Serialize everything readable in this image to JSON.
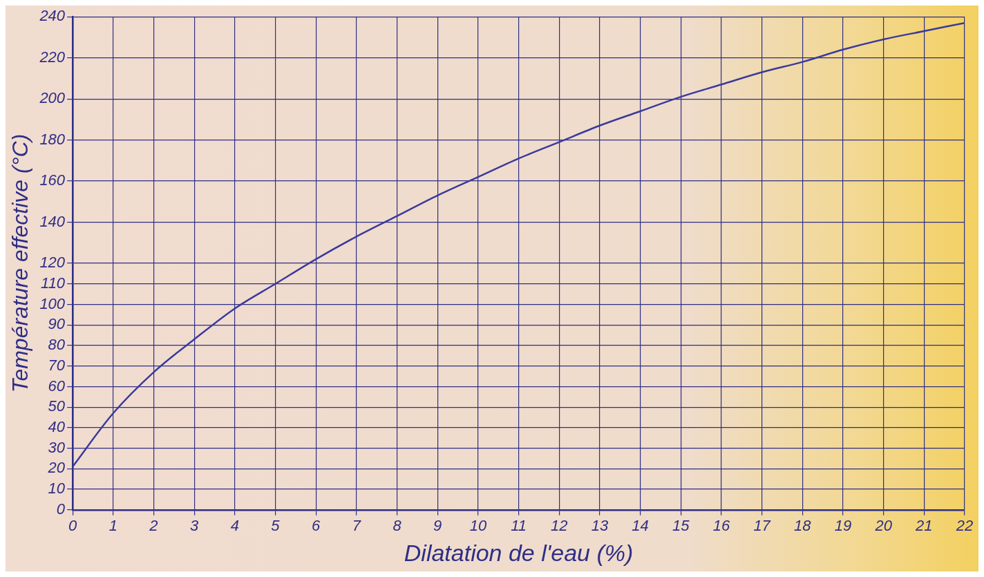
{
  "chart_data": {
    "type": "line",
    "xlabel": "Dilatation de l'eau (%)",
    "ylabel": "Température effective (°C)",
    "x": [
      0,
      1,
      2,
      3,
      4,
      5,
      6,
      7,
      8,
      9,
      10,
      11,
      12,
      13,
      14,
      15,
      16,
      17,
      18,
      19,
      20,
      21,
      22
    ],
    "series": [
      {
        "color": "#3a3a9c",
        "values": [
          21,
          47,
          67,
          83,
          98,
          110,
          122,
          133,
          143,
          153,
          162,
          171,
          179,
          187,
          194,
          201,
          207,
          213,
          218,
          224,
          229,
          233,
          237
        ]
      }
    ],
    "xlim": [
      0,
      22
    ],
    "xticks": [
      0,
      1,
      2,
      3,
      4,
      5,
      6,
      7,
      8,
      9,
      10,
      11,
      12,
      13,
      14,
      15,
      16,
      17,
      18,
      19,
      20,
      21,
      22
    ],
    "ylim": [
      0,
      240
    ],
    "yticks": [
      0,
      10,
      20,
      30,
      40,
      50,
      60,
      70,
      80,
      90,
      100,
      110,
      120,
      140,
      160,
      180,
      200,
      220,
      240
    ],
    "grid": true,
    "legend": false,
    "marker": "none",
    "line_style": "solid"
  }
}
